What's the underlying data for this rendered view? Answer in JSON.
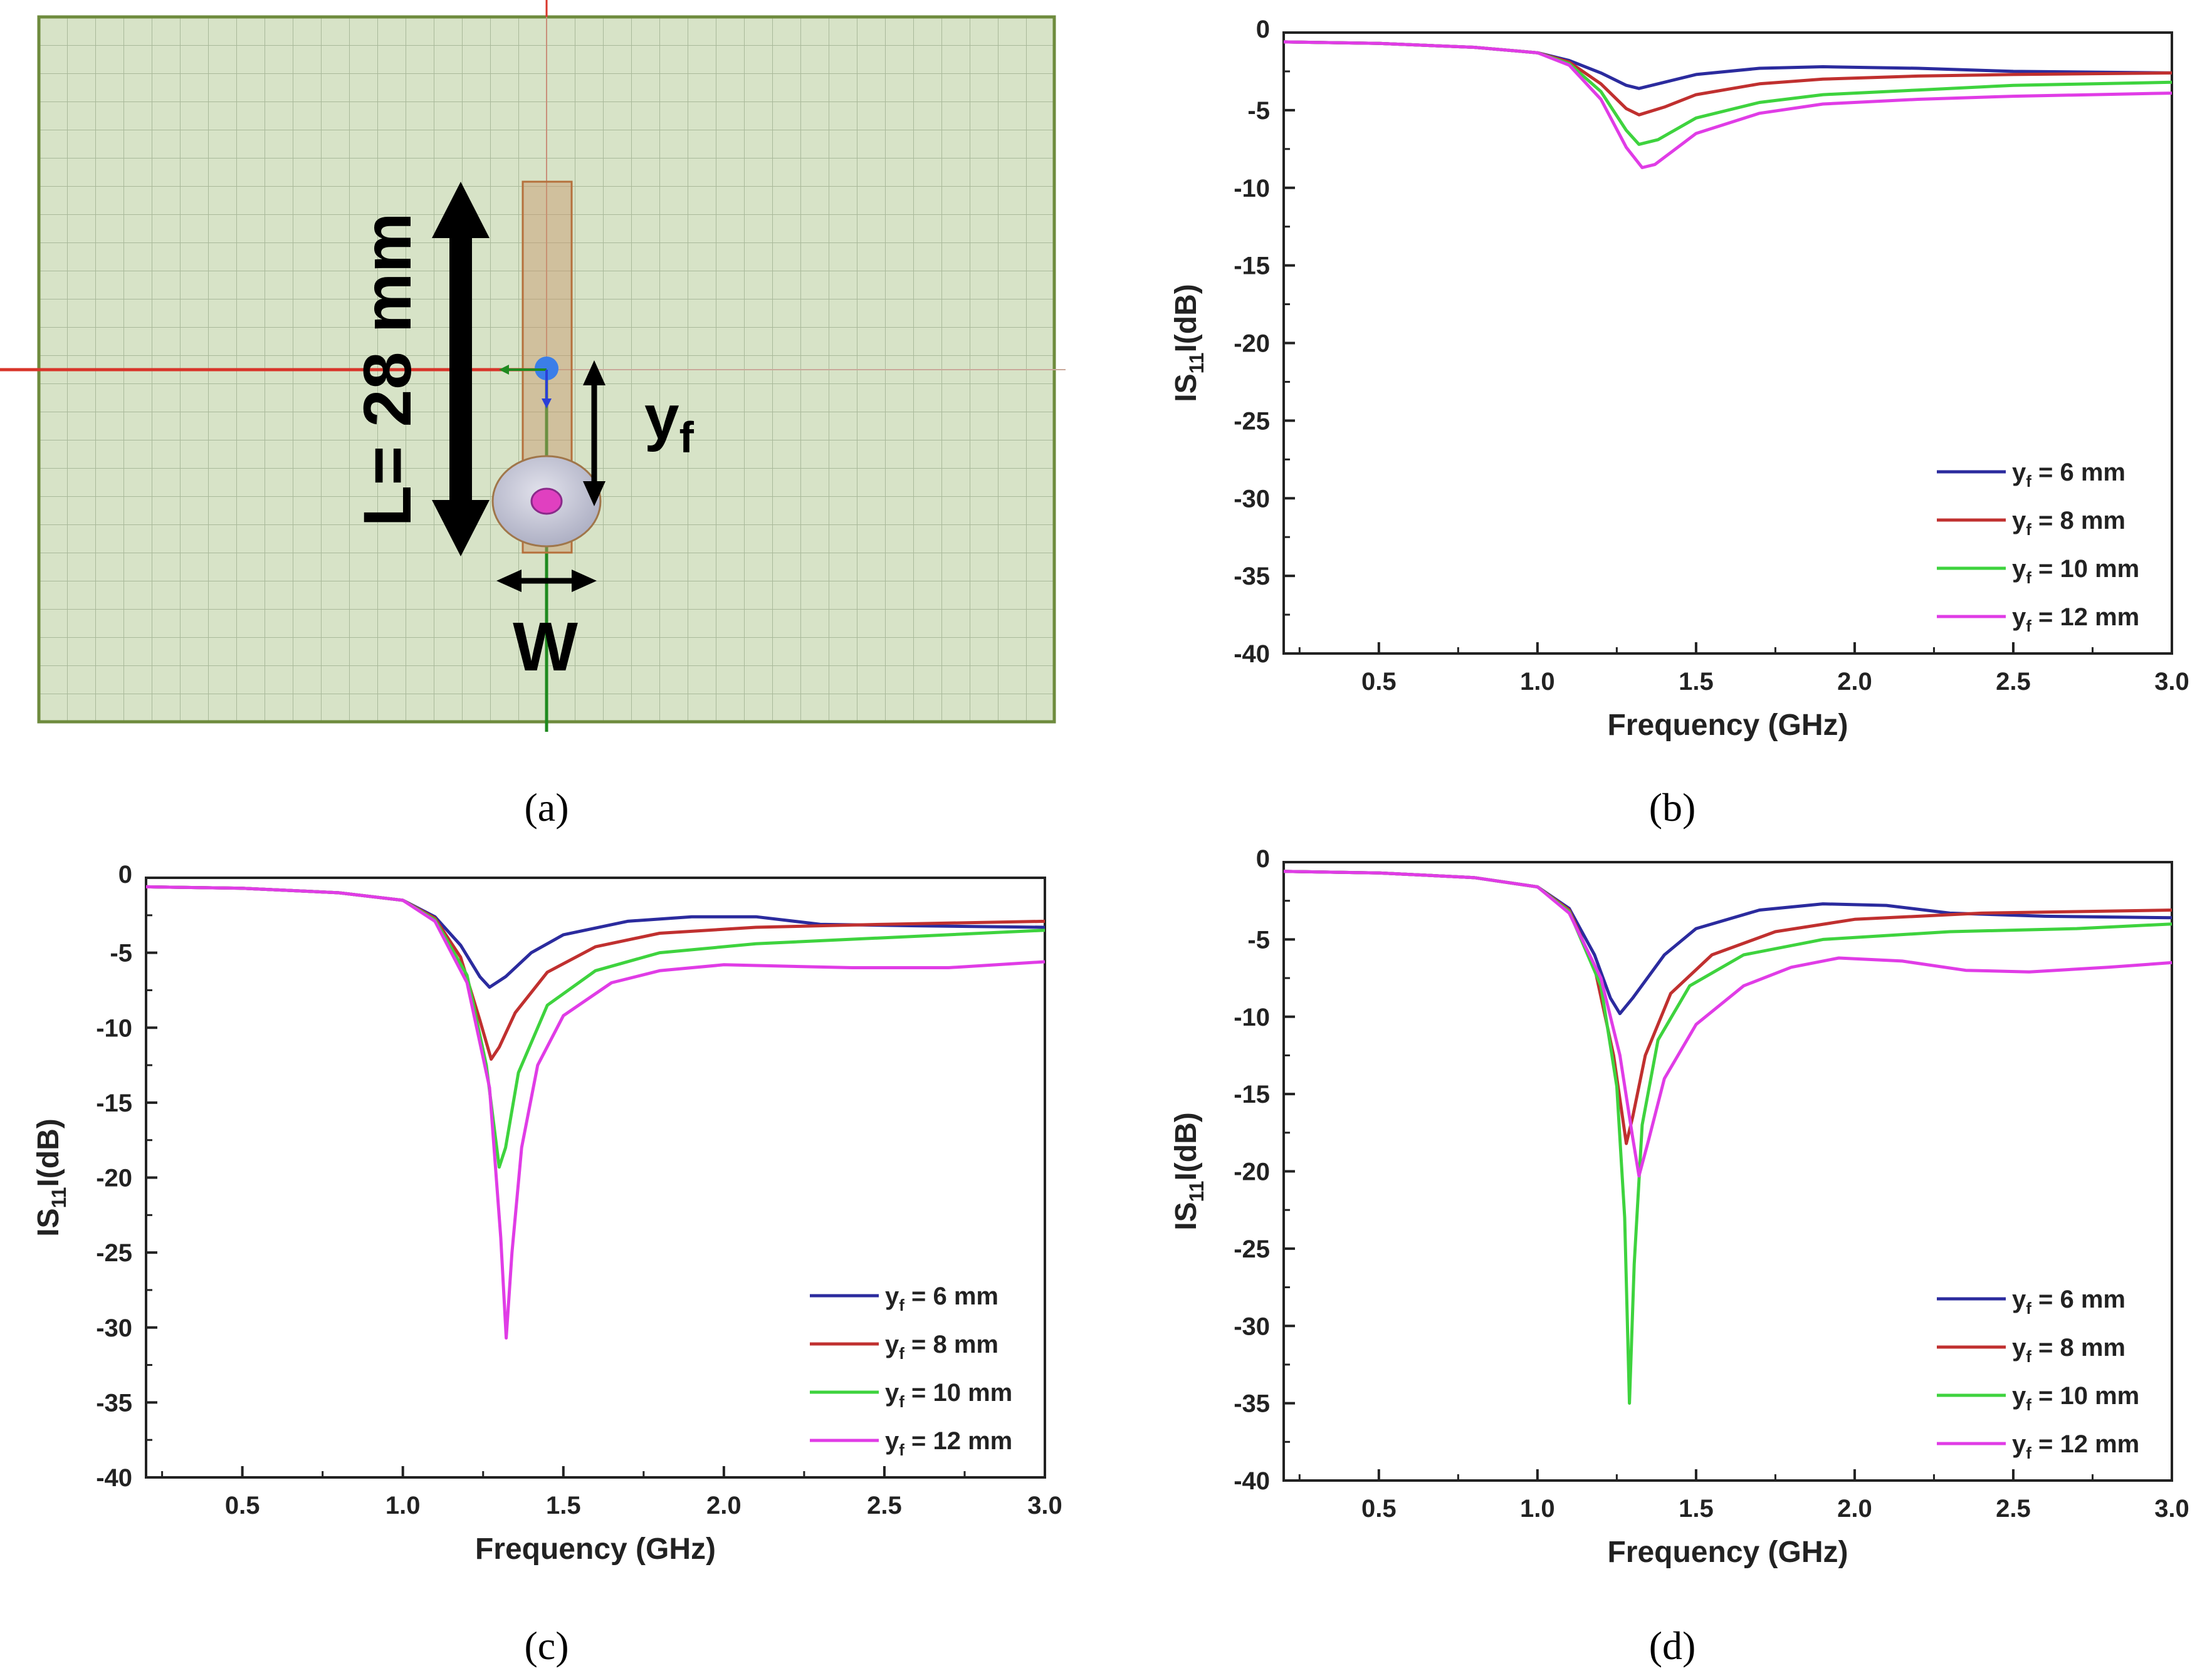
{
  "figure": {
    "captions": [
      "(a)",
      "(b)",
      "(c)",
      "(d)"
    ]
  },
  "panel_a": {
    "length_label": "L= 28 mm",
    "feed_label": "y",
    "feed_subscript": "f",
    "width_label": "W",
    "colors": {
      "substrate": "#d7e3c7",
      "grid": "#a9b99a",
      "border": "#6e8b3d",
      "patch": "#c8956a",
      "probe": "#c8c8d8",
      "pin": "#e040c0"
    }
  },
  "chart_data": [
    {
      "panel": "b",
      "type": "line",
      "xlabel": "Frequency (GHz)",
      "ylabel_prefix": "IS",
      "ylabel_sub": "11",
      "ylabel_suffix": "I(dB)",
      "xlim": [
        0.2,
        3.0
      ],
      "ylim": [
        -40,
        0
      ],
      "xticks": [
        "0.5",
        "1.0",
        "1.5",
        "2.0",
        "2.5",
        "3.0"
      ],
      "yticks": [
        "0",
        "-5",
        "-10",
        "-15",
        "-20",
        "-25",
        "-30",
        "-35",
        "-40"
      ],
      "legend_position": "bottom-right",
      "series": [
        {
          "name": "y",
          "sub": "f",
          "label": " = 6 mm",
          "color": "#2b2b9e",
          "points": [
            [
              0.2,
              -0.6
            ],
            [
              0.5,
              -0.7
            ],
            [
              0.8,
              -0.95
            ],
            [
              1.0,
              -1.3
            ],
            [
              1.1,
              -1.8
            ],
            [
              1.2,
              -2.6
            ],
            [
              1.28,
              -3.4
            ],
            [
              1.32,
              -3.6
            ],
            [
              1.4,
              -3.2
            ],
            [
              1.5,
              -2.7
            ],
            [
              1.7,
              -2.3
            ],
            [
              1.9,
              -2.2
            ],
            [
              2.2,
              -2.3
            ],
            [
              2.5,
              -2.5
            ],
            [
              3.0,
              -2.6
            ]
          ]
        },
        {
          "name": "y",
          "sub": "f",
          "label": " = 8 mm",
          "color": "#c0302f",
          "points": [
            [
              0.2,
              -0.6
            ],
            [
              0.5,
              -0.7
            ],
            [
              0.8,
              -0.95
            ],
            [
              1.0,
              -1.3
            ],
            [
              1.1,
              -1.9
            ],
            [
              1.2,
              -3.3
            ],
            [
              1.28,
              -4.9
            ],
            [
              1.32,
              -5.3
            ],
            [
              1.4,
              -4.8
            ],
            [
              1.5,
              -4.0
            ],
            [
              1.7,
              -3.3
            ],
            [
              1.9,
              -3.0
            ],
            [
              2.2,
              -2.8
            ],
            [
              2.5,
              -2.7
            ],
            [
              3.0,
              -2.6
            ]
          ]
        },
        {
          "name": "y",
          "sub": "f",
          "label": " = 10 mm",
          "color": "#3ed33e",
          "points": [
            [
              0.2,
              -0.6
            ],
            [
              0.5,
              -0.7
            ],
            [
              0.8,
              -0.95
            ],
            [
              1.0,
              -1.3
            ],
            [
              1.1,
              -2.0
            ],
            [
              1.2,
              -3.8
            ],
            [
              1.28,
              -6.3
            ],
            [
              1.32,
              -7.2
            ],
            [
              1.38,
              -6.9
            ],
            [
              1.5,
              -5.5
            ],
            [
              1.7,
              -4.5
            ],
            [
              1.9,
              -4.0
            ],
            [
              2.2,
              -3.7
            ],
            [
              2.5,
              -3.4
            ],
            [
              3.0,
              -3.2
            ]
          ]
        },
        {
          "name": "y",
          "sub": "f",
          "label": " = 12 mm",
          "color": "#e03ce6",
          "points": [
            [
              0.2,
              -0.6
            ],
            [
              0.5,
              -0.7
            ],
            [
              0.8,
              -0.95
            ],
            [
              1.0,
              -1.3
            ],
            [
              1.1,
              -2.1
            ],
            [
              1.2,
              -4.3
            ],
            [
              1.28,
              -7.4
            ],
            [
              1.33,
              -8.7
            ],
            [
              1.37,
              -8.5
            ],
            [
              1.5,
              -6.5
            ],
            [
              1.7,
              -5.2
            ],
            [
              1.9,
              -4.6
            ],
            [
              2.2,
              -4.3
            ],
            [
              2.5,
              -4.1
            ],
            [
              3.0,
              -3.9
            ]
          ]
        }
      ]
    },
    {
      "panel": "c",
      "type": "line",
      "xlabel": "Frequency (GHz)",
      "ylabel_prefix": "IS",
      "ylabel_sub": "11",
      "ylabel_suffix": "I(dB)",
      "xlim": [
        0.2,
        3.0
      ],
      "ylim": [
        -40,
        0
      ],
      "xticks": [
        "0.5",
        "1.0",
        "1.5",
        "2.0",
        "2.5",
        "3.0"
      ],
      "yticks": [
        "0",
        "-5",
        "-10",
        "-15",
        "-20",
        "-25",
        "-30",
        "-35",
        "-40"
      ],
      "legend_position": "bottom-right",
      "series": [
        {
          "name": "y",
          "sub": "f",
          "label": " = 6 mm",
          "color": "#2b2b9e",
          "points": [
            [
              0.2,
              -0.6
            ],
            [
              0.5,
              -0.7
            ],
            [
              0.8,
              -1.0
            ],
            [
              1.0,
              -1.5
            ],
            [
              1.1,
              -2.6
            ],
            [
              1.18,
              -4.5
            ],
            [
              1.24,
              -6.6
            ],
            [
              1.27,
              -7.3
            ],
            [
              1.32,
              -6.6
            ],
            [
              1.4,
              -5.0
            ],
            [
              1.5,
              -3.8
            ],
            [
              1.7,
              -2.9
            ],
            [
              1.9,
              -2.6
            ],
            [
              2.1,
              -2.6
            ],
            [
              2.3,
              -3.1
            ],
            [
              2.6,
              -3.2
            ],
            [
              3.0,
              -3.3
            ]
          ]
        },
        {
          "name": "y",
          "sub": "f",
          "label": " = 8 mm",
          "color": "#c0302f",
          "points": [
            [
              0.2,
              -0.6
            ],
            [
              0.5,
              -0.7
            ],
            [
              0.8,
              -1.0
            ],
            [
              1.0,
              -1.5
            ],
            [
              1.1,
              -2.7
            ],
            [
              1.18,
              -5.3
            ],
            [
              1.24,
              -9.5
            ],
            [
              1.275,
              -12.1
            ],
            [
              1.3,
              -11.3
            ],
            [
              1.35,
              -9.0
            ],
            [
              1.45,
              -6.3
            ],
            [
              1.6,
              -4.6
            ],
            [
              1.8,
              -3.7
            ],
            [
              2.1,
              -3.3
            ],
            [
              2.5,
              -3.1
            ],
            [
              3.0,
              -2.9
            ]
          ]
        },
        {
          "name": "y",
          "sub": "f",
          "label": " = 10 mm",
          "color": "#3ed33e",
          "points": [
            [
              0.2,
              -0.6
            ],
            [
              0.5,
              -0.7
            ],
            [
              0.8,
              -1.0
            ],
            [
              1.0,
              -1.5
            ],
            [
              1.1,
              -2.8
            ],
            [
              1.2,
              -6.5
            ],
            [
              1.26,
              -12.5
            ],
            [
              1.3,
              -19.3
            ],
            [
              1.32,
              -18.0
            ],
            [
              1.36,
              -13.0
            ],
            [
              1.45,
              -8.5
            ],
            [
              1.6,
              -6.2
            ],
            [
              1.8,
              -5.0
            ],
            [
              2.1,
              -4.4
            ],
            [
              2.5,
              -4.0
            ],
            [
              3.0,
              -3.5
            ]
          ]
        },
        {
          "name": "y",
          "sub": "f",
          "label": " = 12 mm",
          "color": "#e03ce6",
          "points": [
            [
              0.2,
              -0.6
            ],
            [
              0.5,
              -0.7
            ],
            [
              0.8,
              -1.0
            ],
            [
              1.0,
              -1.5
            ],
            [
              1.1,
              -2.9
            ],
            [
              1.2,
              -7.0
            ],
            [
              1.27,
              -14.0
            ],
            [
              1.305,
              -24.0
            ],
            [
              1.322,
              -30.7
            ],
            [
              1.34,
              -25.0
            ],
            [
              1.37,
              -18.0
            ],
            [
              1.42,
              -12.5
            ],
            [
              1.5,
              -9.2
            ],
            [
              1.65,
              -7.0
            ],
            [
              1.8,
              -6.2
            ],
            [
              2.0,
              -5.8
            ],
            [
              2.4,
              -6.0
            ],
            [
              2.7,
              -6.0
            ],
            [
              3.0,
              -5.6
            ]
          ]
        }
      ]
    },
    {
      "panel": "d",
      "type": "line",
      "xlabel": "Frequency (GHz)",
      "ylabel_prefix": "IS",
      "ylabel_sub": "11",
      "ylabel_suffix": "I(dB)",
      "xlim": [
        0.2,
        3.0
      ],
      "ylim": [
        -40,
        0
      ],
      "xticks": [
        "0.5",
        "1.0",
        "1.5",
        "2.0",
        "2.5",
        "3.0"
      ],
      "yticks": [
        "0",
        "-5",
        "-10",
        "-15",
        "-20",
        "-25",
        "-30",
        "-35",
        "-40"
      ],
      "legend_position": "bottom-right",
      "series": [
        {
          "name": "y",
          "sub": "f",
          "label": " = 6 mm",
          "color": "#2b2b9e",
          "points": [
            [
              0.2,
              -0.6
            ],
            [
              0.5,
              -0.7
            ],
            [
              0.8,
              -1.0
            ],
            [
              1.0,
              -1.6
            ],
            [
              1.1,
              -3.0
            ],
            [
              1.18,
              -6.0
            ],
            [
              1.23,
              -8.8
            ],
            [
              1.26,
              -9.8
            ],
            [
              1.3,
              -8.8
            ],
            [
              1.4,
              -6.0
            ],
            [
              1.5,
              -4.3
            ],
            [
              1.7,
              -3.1
            ],
            [
              1.9,
              -2.7
            ],
            [
              2.1,
              -2.8
            ],
            [
              2.3,
              -3.3
            ],
            [
              2.6,
              -3.5
            ],
            [
              3.0,
              -3.6
            ]
          ]
        },
        {
          "name": "y",
          "sub": "f",
          "label": " = 8 mm",
          "color": "#c0302f",
          "points": [
            [
              0.2,
              -0.6
            ],
            [
              0.5,
              -0.7
            ],
            [
              0.8,
              -1.0
            ],
            [
              1.0,
              -1.6
            ],
            [
              1.1,
              -3.1
            ],
            [
              1.18,
              -6.8
            ],
            [
              1.24,
              -12.5
            ],
            [
              1.28,
              -18.2
            ],
            [
              1.3,
              -16.5
            ],
            [
              1.34,
              -12.5
            ],
            [
              1.42,
              -8.5
            ],
            [
              1.55,
              -6.0
            ],
            [
              1.75,
              -4.5
            ],
            [
              2.0,
              -3.7
            ],
            [
              2.4,
              -3.3
            ],
            [
              3.0,
              -3.1
            ]
          ]
        },
        {
          "name": "y",
          "sub": "f",
          "label": " = 10 mm",
          "color": "#3ed33e",
          "points": [
            [
              0.2,
              -0.6
            ],
            [
              0.5,
              -0.7
            ],
            [
              0.8,
              -1.0
            ],
            [
              1.0,
              -1.6
            ],
            [
              1.1,
              -3.2
            ],
            [
              1.2,
              -8.0
            ],
            [
              1.25,
              -14.5
            ],
            [
              1.275,
              -23.0
            ],
            [
              1.29,
              -35.0
            ],
            [
              1.305,
              -26.0
            ],
            [
              1.33,
              -17.0
            ],
            [
              1.38,
              -11.5
            ],
            [
              1.48,
              -8.0
            ],
            [
              1.65,
              -6.0
            ],
            [
              1.9,
              -5.0
            ],
            [
              2.3,
              -4.5
            ],
            [
              2.7,
              -4.3
            ],
            [
              3.0,
              -4.0
            ]
          ]
        },
        {
          "name": "y",
          "sub": "f",
          "label": " = 12 mm",
          "color": "#e03ce6",
          "points": [
            [
              0.2,
              -0.6
            ],
            [
              0.5,
              -0.7
            ],
            [
              0.8,
              -1.0
            ],
            [
              1.0,
              -1.6
            ],
            [
              1.1,
              -3.3
            ],
            [
              1.2,
              -7.5
            ],
            [
              1.26,
              -12.5
            ],
            [
              1.3,
              -17.8
            ],
            [
              1.32,
              -20.3
            ],
            [
              1.35,
              -18.0
            ],
            [
              1.4,
              -14.0
            ],
            [
              1.5,
              -10.5
            ],
            [
              1.65,
              -8.0
            ],
            [
              1.8,
              -6.8
            ],
            [
              1.95,
              -6.2
            ],
            [
              2.15,
              -6.4
            ],
            [
              2.35,
              -7.0
            ],
            [
              2.55,
              -7.1
            ],
            [
              2.8,
              -6.8
            ],
            [
              3.0,
              -6.5
            ]
          ]
        }
      ]
    }
  ]
}
